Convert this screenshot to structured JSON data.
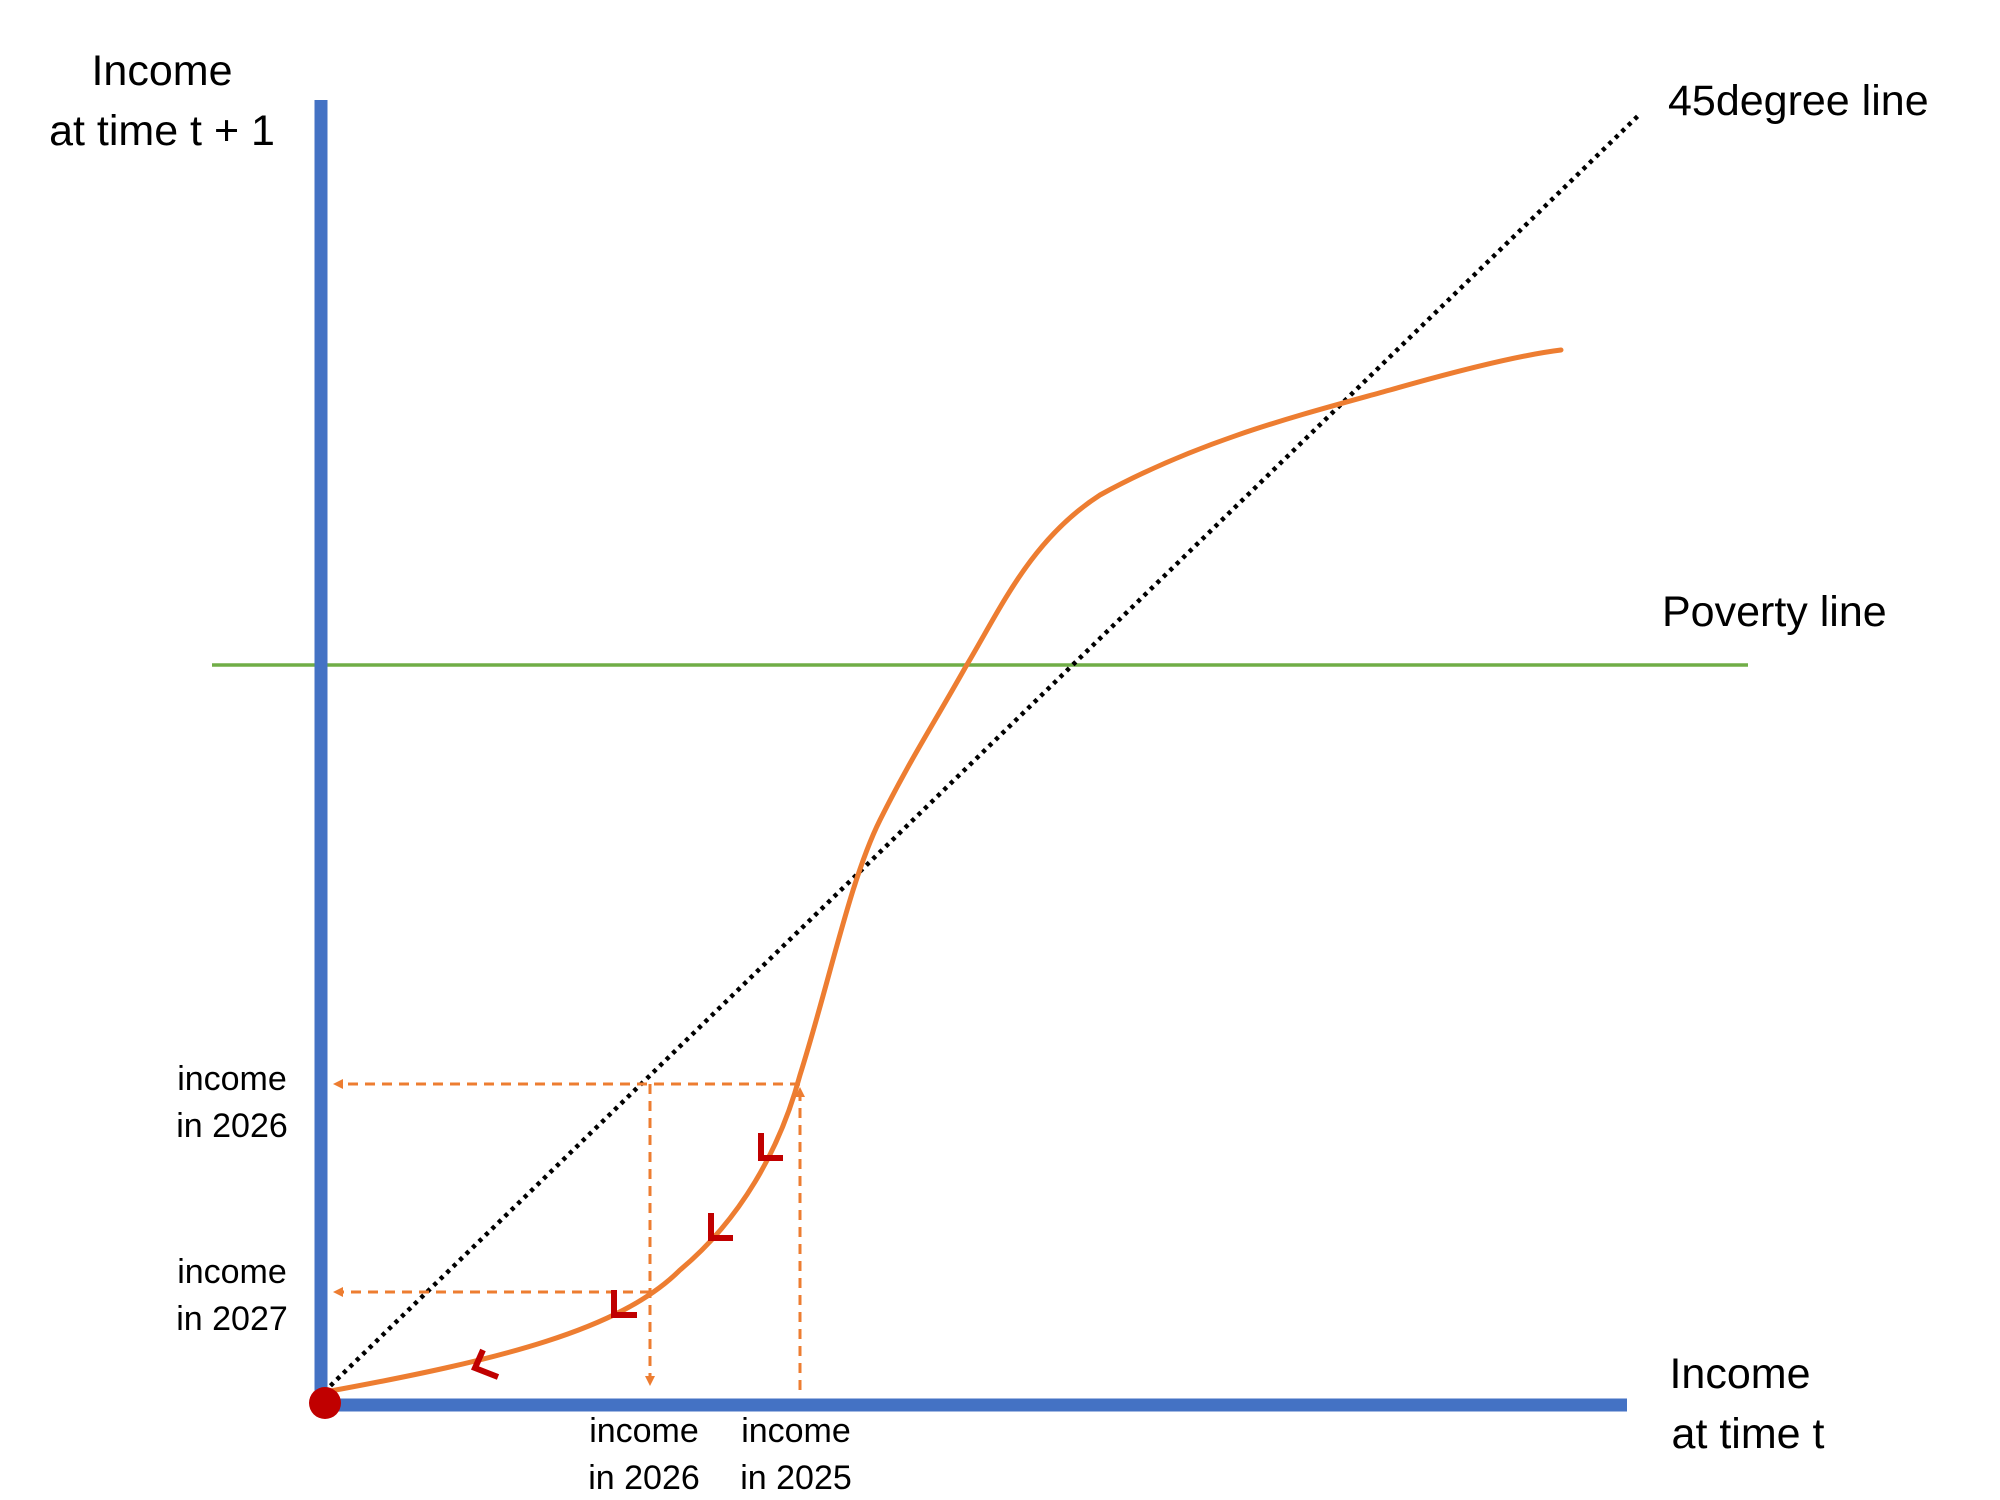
{
  "y_axis_label": [
    "Income",
    "at time t + 1"
  ],
  "x_axis_label": [
    "Income",
    "at time t"
  ],
  "lines": {
    "diagonal_label": "45degree line",
    "poverty_label": "Poverty line"
  },
  "tick_labels": {
    "y_2026": [
      "income",
      "in 2026"
    ],
    "y_2027": [
      "income",
      "in 2027"
    ],
    "x_2026": [
      "income",
      "in 2026"
    ],
    "x_2025": [
      "income",
      "in 2025"
    ]
  },
  "colors": {
    "axes": "#4472c4",
    "curve": "#ed7d31",
    "diagonal": "#000000",
    "poverty_line": "#70ad47",
    "direction_marks": "#c00000",
    "origin_dot": "#c00000"
  }
}
